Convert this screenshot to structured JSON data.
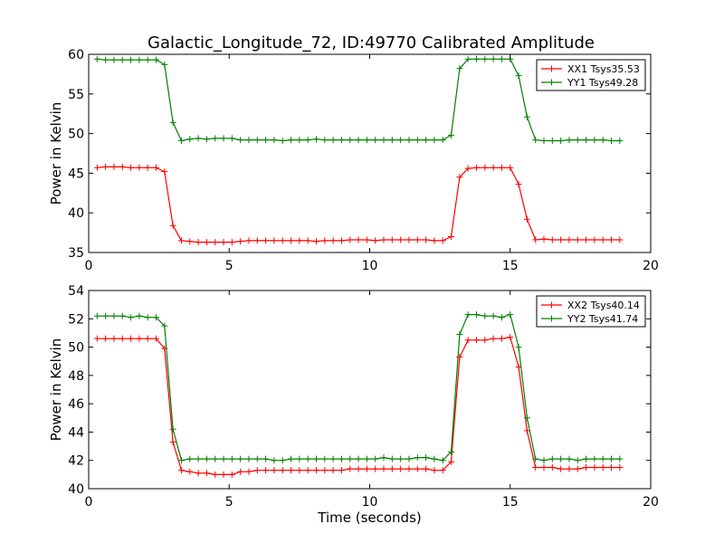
{
  "title": "Galactic_Longitude_72, ID:49770 Calibrated Amplitude",
  "chart_data": [
    {
      "type": "line",
      "title": "Galactic_Longitude_72, ID:49770 Calibrated Amplitude",
      "xlabel": "",
      "ylabel": "Power in Kelvin",
      "xlim": [
        0,
        20
      ],
      "ylim": [
        35,
        60
      ],
      "xticks": [
        "0",
        "5",
        "10",
        "15",
        "20"
      ],
      "yticks": [
        "35",
        "40",
        "45",
        "50",
        "55",
        "60"
      ],
      "grid": false,
      "legend": "top-right",
      "x": [
        0.3,
        0.6,
        0.9,
        1.2,
        1.5,
        1.8,
        2.1,
        2.4,
        2.7,
        3.0,
        3.3,
        3.6,
        3.9,
        4.2,
        4.5,
        4.8,
        5.1,
        5.4,
        5.7,
        6.0,
        6.3,
        6.6,
        6.9,
        7.2,
        7.5,
        7.8,
        8.1,
        8.4,
        8.7,
        9.0,
        9.3,
        9.6,
        9.9,
        10.2,
        10.5,
        10.8,
        11.1,
        11.4,
        11.7,
        12.0,
        12.3,
        12.6,
        12.9,
        13.2,
        13.5,
        13.8,
        14.1,
        14.4,
        14.7,
        15.0,
        15.3,
        15.6,
        15.9,
        16.2,
        16.5,
        16.8,
        17.1,
        17.4,
        17.7,
        18.0,
        18.3,
        18.6,
        18.9
      ],
      "series": [
        {
          "name": "XX1 Tsys35.53",
          "color": "#ff0000",
          "values": [
            45.7,
            45.8,
            45.8,
            45.8,
            45.7,
            45.7,
            45.7,
            45.7,
            45.2,
            38.4,
            36.5,
            36.4,
            36.3,
            36.3,
            36.3,
            36.3,
            36.3,
            36.4,
            36.5,
            36.5,
            36.5,
            36.5,
            36.5,
            36.5,
            36.5,
            36.5,
            36.4,
            36.5,
            36.5,
            36.5,
            36.6,
            36.6,
            36.6,
            36.5,
            36.6,
            36.6,
            36.6,
            36.6,
            36.6,
            36.6,
            36.5,
            36.5,
            37.0,
            44.5,
            45.6,
            45.7,
            45.7,
            45.7,
            45.7,
            45.7,
            43.6,
            39.2,
            36.6,
            36.7,
            36.6,
            36.6,
            36.6,
            36.6,
            36.6,
            36.6,
            36.6,
            36.6,
            36.6
          ]
        },
        {
          "name": "YY1 Tsys49.28",
          "color": "#008000",
          "values": [
            59.4,
            59.3,
            59.3,
            59.3,
            59.3,
            59.3,
            59.3,
            59.3,
            58.7,
            51.4,
            49.1,
            49.3,
            49.4,
            49.3,
            49.4,
            49.4,
            49.4,
            49.2,
            49.2,
            49.2,
            49.2,
            49.2,
            49.1,
            49.2,
            49.2,
            49.2,
            49.3,
            49.2,
            49.2,
            49.2,
            49.2,
            49.2,
            49.2,
            49.2,
            49.2,
            49.2,
            49.2,
            49.2,
            49.2,
            49.2,
            49.2,
            49.2,
            49.8,
            58.2,
            59.4,
            59.4,
            59.4,
            59.4,
            59.4,
            59.4,
            57.3,
            52.1,
            49.2,
            49.1,
            49.1,
            49.1,
            49.2,
            49.2,
            49.2,
            49.2,
            49.2,
            49.1,
            49.1
          ]
        }
      ]
    },
    {
      "type": "line",
      "title": "",
      "xlabel": "Time (seconds)",
      "ylabel": "Power in Kelvin",
      "xlim": [
        0,
        20
      ],
      "ylim": [
        40,
        54
      ],
      "xticks": [
        "0",
        "5",
        "10",
        "15",
        "20"
      ],
      "yticks": [
        "40",
        "42",
        "44",
        "46",
        "48",
        "50",
        "52",
        "54"
      ],
      "grid": false,
      "legend": "top-right",
      "x": [
        0.3,
        0.6,
        0.9,
        1.2,
        1.5,
        1.8,
        2.1,
        2.4,
        2.7,
        3.0,
        3.3,
        3.6,
        3.9,
        4.2,
        4.5,
        4.8,
        5.1,
        5.4,
        5.7,
        6.0,
        6.3,
        6.6,
        6.9,
        7.2,
        7.5,
        7.8,
        8.1,
        8.4,
        8.7,
        9.0,
        9.3,
        9.6,
        9.9,
        10.2,
        10.5,
        10.8,
        11.1,
        11.4,
        11.7,
        12.0,
        12.3,
        12.6,
        12.9,
        13.2,
        13.5,
        13.8,
        14.1,
        14.4,
        14.7,
        15.0,
        15.3,
        15.6,
        15.9,
        16.2,
        16.5,
        16.8,
        17.1,
        17.4,
        17.7,
        18.0,
        18.3,
        18.6,
        18.9
      ],
      "series": [
        {
          "name": "XX2 Tsys40.14",
          "color": "#ff0000",
          "values": [
            50.6,
            50.6,
            50.6,
            50.6,
            50.6,
            50.6,
            50.6,
            50.6,
            49.9,
            43.3,
            41.3,
            41.2,
            41.1,
            41.1,
            41.0,
            41.0,
            41.0,
            41.2,
            41.2,
            41.3,
            41.3,
            41.3,
            41.3,
            41.3,
            41.3,
            41.3,
            41.3,
            41.3,
            41.3,
            41.3,
            41.4,
            41.4,
            41.4,
            41.4,
            41.4,
            41.4,
            41.4,
            41.4,
            41.4,
            41.4,
            41.3,
            41.3,
            41.9,
            49.3,
            50.5,
            50.5,
            50.5,
            50.6,
            50.6,
            50.7,
            48.6,
            44.1,
            41.5,
            41.5,
            41.5,
            41.4,
            41.4,
            41.4,
            41.5,
            41.5,
            41.5,
            41.5,
            41.5
          ]
        },
        {
          "name": "YY2 Tsys41.74",
          "color": "#008000",
          "values": [
            52.2,
            52.2,
            52.2,
            52.2,
            52.1,
            52.2,
            52.1,
            52.1,
            51.5,
            44.2,
            42.0,
            42.1,
            42.1,
            42.1,
            42.1,
            42.1,
            42.1,
            42.1,
            42.1,
            42.1,
            42.1,
            42.0,
            42.0,
            42.1,
            42.1,
            42.1,
            42.1,
            42.1,
            42.1,
            42.1,
            42.1,
            42.1,
            42.1,
            42.1,
            42.2,
            42.1,
            42.1,
            42.1,
            42.2,
            42.2,
            42.1,
            42.0,
            42.6,
            50.9,
            52.3,
            52.3,
            52.2,
            52.2,
            52.1,
            52.3,
            50.0,
            45.0,
            42.1,
            42.0,
            42.1,
            42.1,
            42.1,
            42.0,
            42.1,
            42.1,
            42.1,
            42.1,
            42.1
          ]
        }
      ]
    }
  ]
}
